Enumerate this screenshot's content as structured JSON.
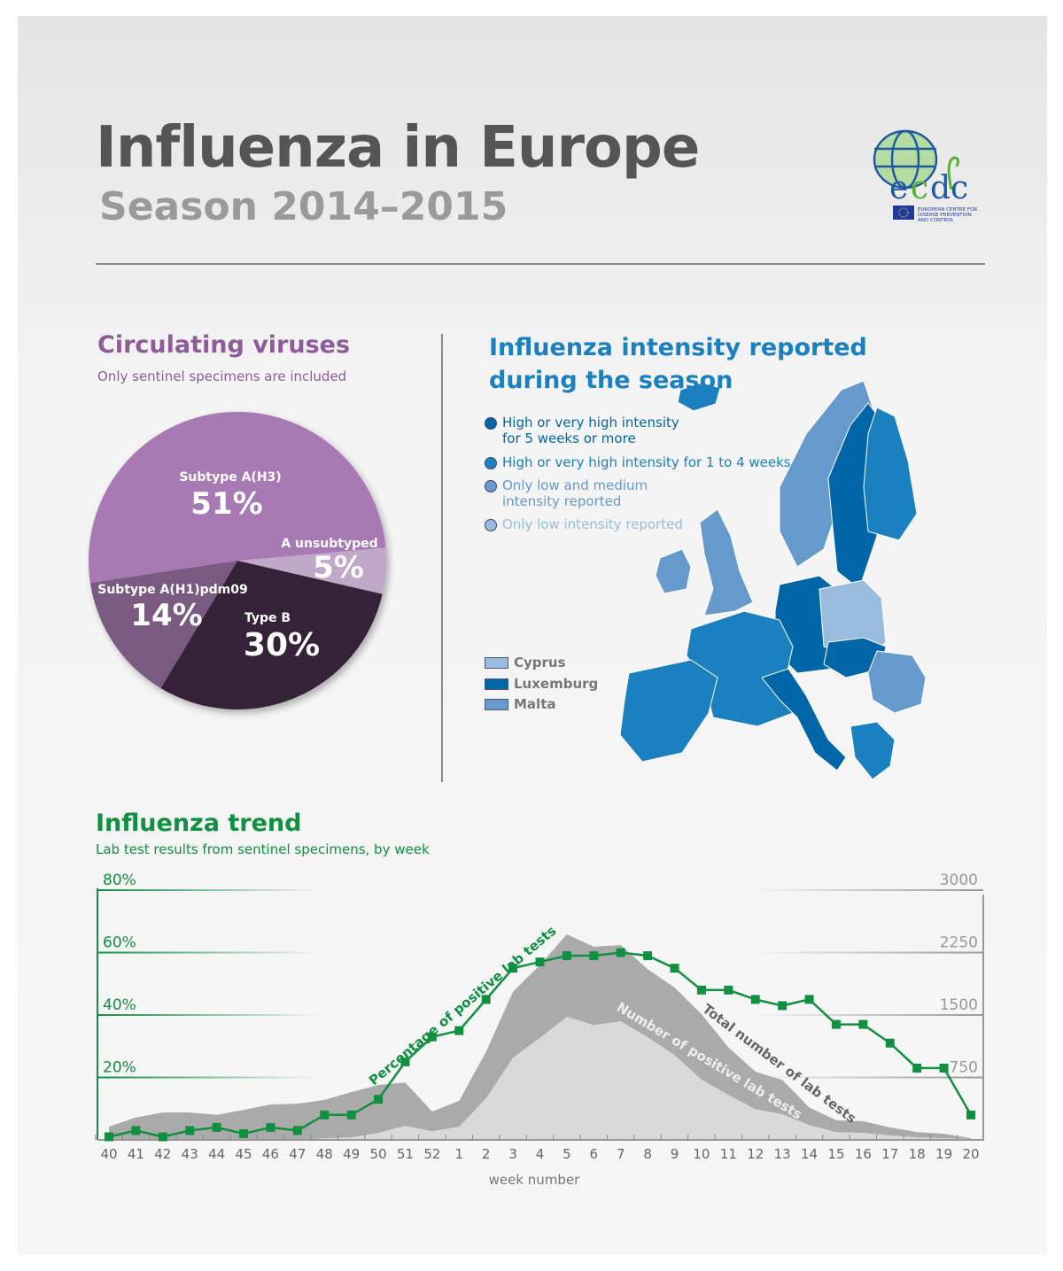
{
  "header": {
    "title": "Influenza in Europe",
    "subtitle": "Season 2014–2015",
    "logo_text": "ecdc",
    "logo_caption": "EUROPEAN CENTRE FOR DISEASE PREVENTION AND CONTROL"
  },
  "viruses": {
    "title": "Circulating viruses",
    "subtitle": "Only sentinel specimens are included"
  },
  "map": {
    "title": "Influenza intensity reported during the season",
    "legend": [
      {
        "label": "High or very high intensity for 5 weeks or more",
        "color": "#0066a8"
      },
      {
        "label": "High or very high intensity for 1 to 4 weeks",
        "color": "#1a80c0"
      },
      {
        "label": "Only low and medium intensity reported",
        "color": "#6699cc"
      },
      {
        "label": "Only low intensity reported",
        "color": "#99bbdd"
      }
    ],
    "small_countries": [
      {
        "label": "Cyprus",
        "color": "#99bbdd"
      },
      {
        "label": "Luxemburg",
        "color": "#0066a8"
      },
      {
        "label": "Malta",
        "color": "#6699cc"
      }
    ]
  },
  "trend": {
    "title": "Influenza trend",
    "subtitle": "Lab test results from sentinel specimens, by week"
  },
  "chart_data": [
    {
      "type": "pie",
      "slices": [
        {
          "name": "A unsubtyped",
          "value": 5,
          "label": "5%",
          "color": "#c0a8c8"
        },
        {
          "name": "Type B",
          "value": 30,
          "label": "30%",
          "color": "#362437"
        },
        {
          "name": "Subtype A(H1)pdm09",
          "value": 14,
          "label": "14%",
          "color": "#7a5a80"
        },
        {
          "name": "Subtype A(H3)",
          "value": 51,
          "label": "51%",
          "color": "#a87ab4"
        }
      ]
    },
    {
      "type": "line",
      "title": "Influenza trend",
      "xlabel": "week number",
      "categories": [
        "40",
        "41",
        "42",
        "43",
        "44",
        "45",
        "46",
        "47",
        "48",
        "49",
        "50",
        "51",
        "52",
        "1",
        "2",
        "3",
        "4",
        "5",
        "6",
        "7",
        "8",
        "9",
        "10",
        "11",
        "12",
        "13",
        "14",
        "15",
        "16",
        "17",
        "18",
        "19",
        "20"
      ],
      "y_left": {
        "ticks": [
          "20%",
          "40%",
          "60%",
          "80%"
        ],
        "range": [
          0,
          80
        ]
      },
      "y_right": {
        "ticks": [
          "750",
          "1500",
          "2250",
          "3000"
        ],
        "range": [
          0,
          3000
        ]
      },
      "series": [
        {
          "name": "Total number of lab tests",
          "axis": "right",
          "type": "area",
          "color": "#aaaaaa",
          "values": [
            160,
            270,
            330,
            330,
            300,
            360,
            425,
            435,
            480,
            575,
            660,
            690,
            340,
            470,
            1060,
            1780,
            2100,
            2470,
            2320,
            2340,
            2050,
            1830,
            1510,
            1110,
            820,
            720,
            390,
            235,
            225,
            150,
            95,
            75,
            20
          ]
        },
        {
          "name": "Number of positive lab tests",
          "axis": "right",
          "type": "area",
          "color": "#d9d9d9",
          "values": [
            0,
            0,
            0,
            0,
            0,
            0,
            0,
            0,
            20,
            30,
            85,
            170,
            105,
            160,
            500,
            990,
            1225,
            1480,
            1380,
            1425,
            1235,
            1020,
            725,
            540,
            370,
            310,
            180,
            95,
            85,
            55,
            30,
            20,
            10
          ]
        },
        {
          "name": "Percentage of positive lab tests",
          "axis": "left",
          "type": "line",
          "color": "#109040",
          "values": [
            1,
            3,
            1,
            3,
            4,
            2,
            4,
            3,
            8,
            8,
            13,
            25,
            33,
            35,
            45,
            55,
            57,
            59,
            59,
            60,
            59,
            55,
            48,
            48,
            45,
            43,
            45,
            37,
            37,
            31,
            23,
            23,
            8
          ]
        }
      ]
    }
  ]
}
